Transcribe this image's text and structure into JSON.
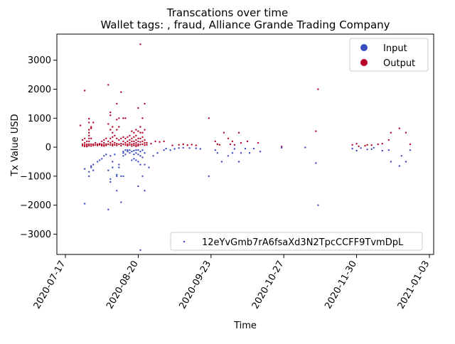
{
  "chart_data": {
    "type": "scatter",
    "title": "Transcations over time",
    "subtitle": "Wallet tags: , fraud, Alliance Grande Trading Company",
    "xlabel": "Time",
    "ylabel": "Tx Value USD",
    "x_range": [
      "2020-07-13",
      "2021-01-05"
    ],
    "ylim": [
      -3700,
      3900
    ],
    "x_ticks": [
      "2020-07-17",
      "2020-08-20",
      "2020-09-23",
      "2020-10-27",
      "2020-11-30",
      "2021-01-03"
    ],
    "y_ticks": [
      "3000",
      "2000",
      "1000",
      "0",
      "−1000",
      "−2000",
      "−3000"
    ],
    "y_tick_values": [
      3000,
      2000,
      1000,
      0,
      -1000,
      -2000,
      -3000
    ],
    "grid": false,
    "legend_position": "top-right",
    "legend_wallet_position": "bottom-right",
    "colors": {
      "input": "#3b4cc0",
      "output": "#b40426"
    },
    "legend": {
      "input": "Input",
      "output": "Output",
      "wallet": "12eYvGmb7rA6fsaXd3N2TpcCCFF9TvmDpL"
    },
    "series": [
      {
        "key": "output",
        "points": [
          [
            "2020-07-24",
            750
          ],
          [
            "2020-07-25",
            250
          ],
          [
            "2020-07-25",
            100
          ],
          [
            "2020-07-25",
            50
          ],
          [
            "2020-07-26",
            1950
          ],
          [
            "2020-07-26",
            300
          ],
          [
            "2020-07-26",
            150
          ],
          [
            "2020-07-26",
            80
          ],
          [
            "2020-07-26",
            30
          ],
          [
            "2020-07-27",
            200
          ],
          [
            "2020-07-27",
            100
          ],
          [
            "2020-07-27",
            60
          ],
          [
            "2020-07-27",
            20
          ],
          [
            "2020-07-28",
            980
          ],
          [
            "2020-07-28",
            850
          ],
          [
            "2020-07-28",
            600
          ],
          [
            "2020-07-28",
            500
          ],
          [
            "2020-07-28",
            400
          ],
          [
            "2020-07-28",
            300
          ],
          [
            "2020-07-28",
            200
          ],
          [
            "2020-07-28",
            100
          ],
          [
            "2020-07-28",
            50
          ],
          [
            "2020-07-29",
            700
          ],
          [
            "2020-07-29",
            650
          ],
          [
            "2020-07-29",
            300
          ],
          [
            "2020-07-29",
            100
          ],
          [
            "2020-07-29",
            40
          ],
          [
            "2020-07-30",
            850
          ],
          [
            "2020-07-30",
            100
          ],
          [
            "2020-07-30",
            60
          ],
          [
            "2020-07-31",
            150
          ],
          [
            "2020-07-31",
            80
          ],
          [
            "2020-08-01",
            100
          ],
          [
            "2020-08-01",
            60
          ],
          [
            "2020-08-02",
            120
          ],
          [
            "2020-08-02",
            80
          ],
          [
            "2020-08-03",
            200
          ],
          [
            "2020-08-03",
            100
          ],
          [
            "2020-08-03",
            50
          ],
          [
            "2020-08-04",
            250
          ],
          [
            "2020-08-04",
            150
          ],
          [
            "2020-08-04",
            80
          ],
          [
            "2020-08-04",
            40
          ],
          [
            "2020-08-05",
            300
          ],
          [
            "2020-08-05",
            100
          ],
          [
            "2020-08-05",
            60
          ],
          [
            "2020-08-06",
            2150
          ],
          [
            "2020-08-06",
            800
          ],
          [
            "2020-08-06",
            200
          ],
          [
            "2020-08-06",
            100
          ],
          [
            "2020-08-07",
            1200
          ],
          [
            "2020-08-07",
            1100
          ],
          [
            "2020-08-07",
            600
          ],
          [
            "2020-08-07",
            300
          ],
          [
            "2020-08-07",
            150
          ],
          [
            "2020-08-07",
            80
          ],
          [
            "2020-08-08",
            700
          ],
          [
            "2020-08-08",
            500
          ],
          [
            "2020-08-08",
            350
          ],
          [
            "2020-08-08",
            200
          ],
          [
            "2020-08-08",
            100
          ],
          [
            "2020-08-08",
            50
          ],
          [
            "2020-08-09",
            400
          ],
          [
            "2020-08-09",
            150
          ],
          [
            "2020-08-09",
            80
          ],
          [
            "2020-08-10",
            1500
          ],
          [
            "2020-08-10",
            950
          ],
          [
            "2020-08-10",
            600
          ],
          [
            "2020-08-10",
            300
          ],
          [
            "2020-08-10",
            120
          ],
          [
            "2020-08-10",
            60
          ],
          [
            "2020-08-11",
            1000
          ],
          [
            "2020-08-11",
            700
          ],
          [
            "2020-08-11",
            250
          ],
          [
            "2020-08-11",
            100
          ],
          [
            "2020-08-12",
            1900
          ],
          [
            "2020-08-12",
            300
          ],
          [
            "2020-08-12",
            120
          ],
          [
            "2020-08-12",
            50
          ],
          [
            "2020-08-13",
            1000
          ],
          [
            "2020-08-13",
            350
          ],
          [
            "2020-08-13",
            200
          ],
          [
            "2020-08-13",
            100
          ],
          [
            "2020-08-14",
            1000
          ],
          [
            "2020-08-14",
            300
          ],
          [
            "2020-08-14",
            150
          ],
          [
            "2020-08-14",
            80
          ],
          [
            "2020-08-15",
            350
          ],
          [
            "2020-08-15",
            200
          ],
          [
            "2020-08-15",
            100
          ],
          [
            "2020-08-15",
            50
          ],
          [
            "2020-08-16",
            400
          ],
          [
            "2020-08-16",
            250
          ],
          [
            "2020-08-16",
            150
          ],
          [
            "2020-08-16",
            80
          ],
          [
            "2020-08-17",
            550
          ],
          [
            "2020-08-17",
            300
          ],
          [
            "2020-08-17",
            200
          ],
          [
            "2020-08-17",
            100
          ],
          [
            "2020-08-17",
            40
          ],
          [
            "2020-08-18",
            500
          ],
          [
            "2020-08-18",
            350
          ],
          [
            "2020-08-18",
            200
          ],
          [
            "2020-08-18",
            120
          ],
          [
            "2020-08-18",
            60
          ],
          [
            "2020-08-19",
            600
          ],
          [
            "2020-08-19",
            400
          ],
          [
            "2020-08-19",
            250
          ],
          [
            "2020-08-19",
            150
          ],
          [
            "2020-08-19",
            80
          ],
          [
            "2020-08-19",
            30
          ],
          [
            "2020-08-20",
            1350
          ],
          [
            "2020-08-20",
            550
          ],
          [
            "2020-08-20",
            300
          ],
          [
            "2020-08-20",
            200
          ],
          [
            "2020-08-20",
            100
          ],
          [
            "2020-08-20",
            50
          ],
          [
            "2020-08-21",
            3550
          ],
          [
            "2020-08-21",
            700
          ],
          [
            "2020-08-21",
            500
          ],
          [
            "2020-08-21",
            300
          ],
          [
            "2020-08-21",
            180
          ],
          [
            "2020-08-21",
            90
          ],
          [
            "2020-08-22",
            1000
          ],
          [
            "2020-08-22",
            500
          ],
          [
            "2020-08-22",
            350
          ],
          [
            "2020-08-22",
            200
          ],
          [
            "2020-08-22",
            100
          ],
          [
            "2020-08-23",
            1500
          ],
          [
            "2020-08-23",
            600
          ],
          [
            "2020-08-23",
            250
          ],
          [
            "2020-08-23",
            150
          ],
          [
            "2020-08-23",
            70
          ],
          [
            "2020-08-24",
            150
          ],
          [
            "2020-08-24",
            80
          ],
          [
            "2020-08-26",
            120
          ],
          [
            "2020-08-28",
            200
          ],
          [
            "2020-08-30",
            180
          ],
          [
            "2020-09-01",
            200
          ],
          [
            "2020-09-05",
            60
          ],
          [
            "2020-09-08",
            80
          ],
          [
            "2020-09-10",
            100
          ],
          [
            "2020-09-12",
            70
          ],
          [
            "2020-09-14",
            90
          ],
          [
            "2020-09-16",
            60
          ],
          [
            "2020-09-22",
            1000
          ],
          [
            "2020-09-25",
            200
          ],
          [
            "2020-09-26",
            100
          ],
          [
            "2020-09-27",
            80
          ],
          [
            "2020-09-29",
            500
          ],
          [
            "2020-10-01",
            300
          ],
          [
            "2020-10-02",
            100
          ],
          [
            "2020-10-03",
            200
          ],
          [
            "2020-10-04",
            80
          ],
          [
            "2020-10-06",
            500
          ],
          [
            "2020-10-07",
            150
          ],
          [
            "2020-10-10",
            200
          ],
          [
            "2020-10-15",
            150
          ],
          [
            "2020-10-26",
            20
          ],
          [
            "2020-11-11",
            550
          ],
          [
            "2020-11-12",
            2000
          ],
          [
            "2020-11-28",
            80
          ],
          [
            "2020-11-30",
            120
          ],
          [
            "2020-12-01",
            30
          ],
          [
            "2020-12-04",
            50
          ],
          [
            "2020-12-05",
            80
          ],
          [
            "2020-12-07",
            70
          ],
          [
            "2020-12-10",
            100
          ],
          [
            "2020-12-12",
            120
          ],
          [
            "2020-12-15",
            250
          ],
          [
            "2020-12-16",
            500
          ],
          [
            "2020-12-20",
            650
          ],
          [
            "2020-12-23",
            500
          ],
          [
            "2020-12-25",
            100
          ]
        ]
      },
      {
        "key": "input",
        "points": [
          [
            "2020-07-26",
            -750
          ],
          [
            "2020-07-26",
            -1950
          ],
          [
            "2020-07-28",
            -1000
          ],
          [
            "2020-07-28",
            -850
          ],
          [
            "2020-07-29",
            -700
          ],
          [
            "2020-07-29",
            -650
          ],
          [
            "2020-07-30",
            -600
          ],
          [
            "2020-07-30",
            -800
          ],
          [
            "2020-08-01",
            -500
          ],
          [
            "2020-08-02",
            -450
          ],
          [
            "2020-08-03",
            -400
          ],
          [
            "2020-08-04",
            -300
          ],
          [
            "2020-08-05",
            -250
          ],
          [
            "2020-08-06",
            -800
          ],
          [
            "2020-08-06",
            -2150
          ],
          [
            "2020-08-07",
            -1200
          ],
          [
            "2020-08-07",
            -1100
          ],
          [
            "2020-08-07",
            -300
          ],
          [
            "2020-08-08",
            -700
          ],
          [
            "2020-08-08",
            -500
          ],
          [
            "2020-08-09",
            -250
          ],
          [
            "2020-08-10",
            -1500
          ],
          [
            "2020-08-10",
            -950
          ],
          [
            "2020-08-10",
            -1000
          ],
          [
            "2020-08-11",
            -700
          ],
          [
            "2020-08-11",
            -600
          ],
          [
            "2020-08-12",
            -1900
          ],
          [
            "2020-08-12",
            -1000
          ],
          [
            "2020-08-13",
            -1000
          ],
          [
            "2020-08-13",
            -300
          ],
          [
            "2020-08-13",
            -200
          ],
          [
            "2020-08-13",
            -150
          ],
          [
            "2020-08-14",
            -250
          ],
          [
            "2020-08-14",
            -100
          ],
          [
            "2020-08-15",
            -150
          ],
          [
            "2020-08-15",
            -100
          ],
          [
            "2020-08-16",
            -200
          ],
          [
            "2020-08-16",
            -100
          ],
          [
            "2020-08-17",
            -150
          ],
          [
            "2020-08-17",
            -450
          ],
          [
            "2020-08-18",
            -400
          ],
          [
            "2020-08-18",
            -120
          ],
          [
            "2020-08-18",
            -250
          ],
          [
            "2020-08-19",
            -200
          ],
          [
            "2020-08-19",
            -100
          ],
          [
            "2020-08-19",
            -450
          ],
          [
            "2020-08-20",
            -1350
          ],
          [
            "2020-08-20",
            -250
          ],
          [
            "2020-08-20",
            -100
          ],
          [
            "2020-08-20",
            -500
          ],
          [
            "2020-08-21",
            -3550
          ],
          [
            "2020-08-21",
            -600
          ],
          [
            "2020-08-21",
            -300
          ],
          [
            "2020-08-21",
            -150
          ],
          [
            "2020-08-22",
            -1000
          ],
          [
            "2020-08-22",
            -350
          ],
          [
            "2020-08-22",
            -100
          ],
          [
            "2020-08-23",
            -1500
          ],
          [
            "2020-08-23",
            -600
          ],
          [
            "2020-08-23",
            -200
          ],
          [
            "2020-08-25",
            -700
          ],
          [
            "2020-08-27",
            -300
          ],
          [
            "2020-08-29",
            -200
          ],
          [
            "2020-09-01",
            -100
          ],
          [
            "2020-09-02",
            -50
          ],
          [
            "2020-09-04",
            -100
          ],
          [
            "2020-09-06",
            -60
          ],
          [
            "2020-09-08",
            -30
          ],
          [
            "2020-09-10",
            -20
          ],
          [
            "2020-09-13",
            -30
          ],
          [
            "2020-09-16",
            -40
          ],
          [
            "2020-09-18",
            -60
          ],
          [
            "2020-09-22",
            -1000
          ],
          [
            "2020-09-25",
            -100
          ],
          [
            "2020-09-26",
            -200
          ],
          [
            "2020-09-28",
            -500
          ],
          [
            "2020-10-01",
            -300
          ],
          [
            "2020-10-03",
            -200
          ],
          [
            "2020-10-04",
            -60
          ],
          [
            "2020-10-06",
            -500
          ],
          [
            "2020-10-07",
            -200
          ],
          [
            "2020-10-09",
            -50
          ],
          [
            "2020-10-11",
            -200
          ],
          [
            "2020-10-13",
            -50
          ],
          [
            "2020-10-16",
            -150
          ],
          [
            "2020-10-26",
            -20
          ],
          [
            "2020-11-06",
            -10
          ],
          [
            "2020-11-11",
            -550
          ],
          [
            "2020-11-12",
            -2000
          ],
          [
            "2020-11-28",
            -50
          ],
          [
            "2020-11-30",
            -120
          ],
          [
            "2020-12-02",
            -30
          ],
          [
            "2020-12-05",
            -80
          ],
          [
            "2020-12-07",
            -70
          ],
          [
            "2020-12-08",
            -20
          ],
          [
            "2020-12-12",
            -120
          ],
          [
            "2020-12-15",
            -100
          ],
          [
            "2020-12-16",
            -500
          ],
          [
            "2020-12-20",
            -650
          ],
          [
            "2020-12-21",
            -300
          ],
          [
            "2020-12-23",
            -500
          ],
          [
            "2020-12-25",
            -100
          ]
        ]
      }
    ]
  }
}
